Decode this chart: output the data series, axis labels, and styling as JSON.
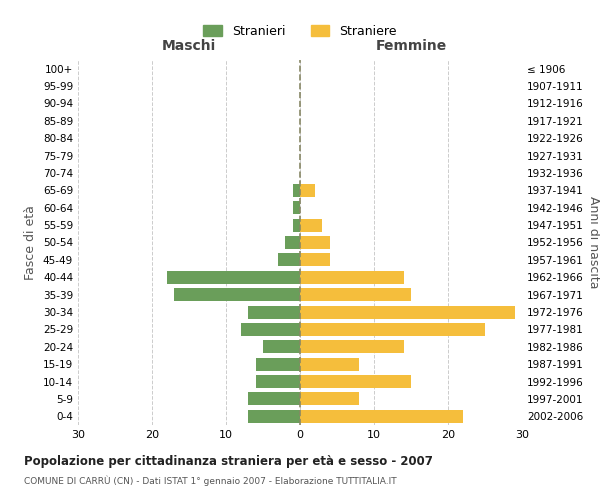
{
  "age_groups": [
    "100+",
    "95-99",
    "90-94",
    "85-89",
    "80-84",
    "75-79",
    "70-74",
    "65-69",
    "60-64",
    "55-59",
    "50-54",
    "45-49",
    "40-44",
    "35-39",
    "30-34",
    "25-29",
    "20-24",
    "15-19",
    "10-14",
    "5-9",
    "0-4"
  ],
  "birth_years": [
    "≤ 1906",
    "1907-1911",
    "1912-1916",
    "1917-1921",
    "1922-1926",
    "1927-1931",
    "1932-1936",
    "1937-1941",
    "1942-1946",
    "1947-1951",
    "1952-1956",
    "1957-1961",
    "1962-1966",
    "1967-1971",
    "1972-1976",
    "1977-1981",
    "1982-1986",
    "1987-1991",
    "1992-1996",
    "1997-2001",
    "2002-2006"
  ],
  "males": [
    0,
    0,
    0,
    0,
    0,
    0,
    0,
    1,
    1,
    1,
    2,
    3,
    18,
    17,
    7,
    8,
    5,
    6,
    6,
    7,
    7
  ],
  "females": [
    0,
    0,
    0,
    0,
    0,
    0,
    0,
    2,
    0,
    3,
    4,
    4,
    14,
    15,
    29,
    25,
    14,
    8,
    15,
    8,
    22
  ],
  "male_color": "#6a9e5a",
  "female_color": "#f5be3c",
  "title": "Popolazione per cittadinanza straniera per età e sesso - 2007",
  "subtitle": "COMUNE DI CARRÙ (CN) - Dati ISTAT 1° gennaio 2007 - Elaborazione TUTTITALIA.IT",
  "legend_male": "Stranieri",
  "legend_female": "Straniere",
  "xlabel_left": "Maschi",
  "xlabel_right": "Femmine",
  "ylabel_left": "Fasce di età",
  "ylabel_right": "Anni di nascita",
  "xlim": 30,
  "bg_color": "#ffffff",
  "grid_color": "#cccccc"
}
